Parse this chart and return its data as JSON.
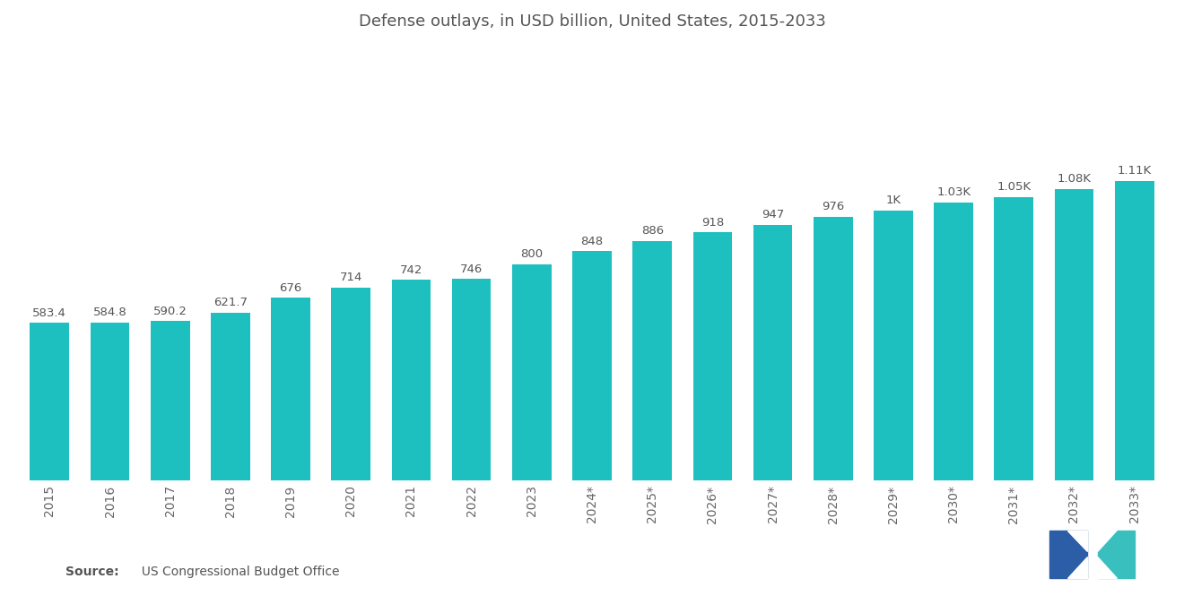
{
  "title": "Defense outlays, in USD billion, United States, 2015-2033",
  "categories": [
    "2015",
    "2016",
    "2017",
    "2018",
    "2019",
    "2020",
    "2021",
    "2022",
    "2023",
    "2024*",
    "2025*",
    "2026*",
    "2027*",
    "2028*",
    "2029*",
    "2030*",
    "2031*",
    "2032*",
    "2033*"
  ],
  "values": [
    583.4,
    584.8,
    590.2,
    621.7,
    676,
    714,
    742,
    746,
    800,
    848,
    886,
    918,
    947,
    976,
    1000,
    1030,
    1050,
    1080,
    1110
  ],
  "bar_labels": [
    "583.4",
    "584.8",
    "590.2",
    "621.7",
    "676",
    "714",
    "742",
    "746",
    "800",
    "848",
    "886",
    "918",
    "947",
    "976",
    "1K",
    "1.03K",
    "1.05K",
    "1.08K",
    "1.11K"
  ],
  "bar_color": "#1EBFBF",
  "background_color": "#ffffff",
  "title_fontsize": 13,
  "label_fontsize": 9.5,
  "tick_fontsize": 10,
  "source_bold": "Source:",
  "source_normal": "  US Congressional Budget Office",
  "ylim": [
    0,
    1600
  ],
  "logo_navy": "#2B5EA7",
  "logo_teal": "#3ABFBF"
}
